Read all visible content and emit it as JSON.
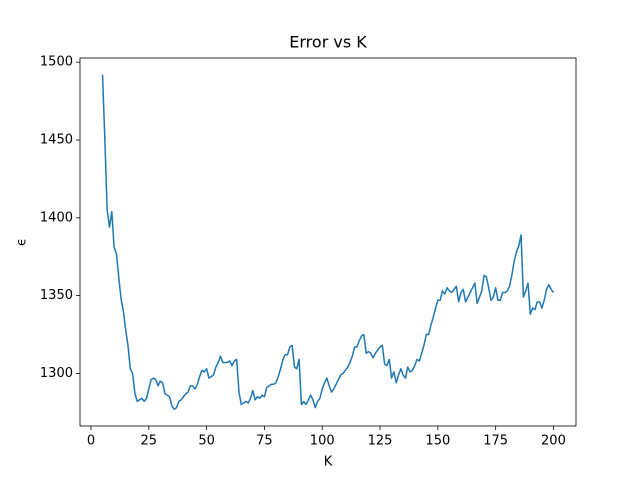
{
  "chart_data": {
    "type": "line",
    "title": "Error vs K",
    "xlabel": "K",
    "ylabel": "ϵ",
    "x": [
      5,
      6,
      7,
      8,
      9,
      10,
      11,
      12,
      13,
      14,
      15,
      16,
      17,
      18,
      19,
      20,
      21,
      22,
      23,
      24,
      25,
      26,
      27,
      28,
      29,
      30,
      31,
      32,
      33,
      34,
      35,
      36,
      37,
      38,
      39,
      40,
      41,
      42,
      43,
      44,
      45,
      46,
      47,
      48,
      49,
      50,
      51,
      52,
      53,
      54,
      55,
      56,
      57,
      58,
      59,
      60,
      61,
      62,
      63,
      64,
      65,
      66,
      67,
      68,
      69,
      70,
      71,
      72,
      73,
      74,
      75,
      76,
      77,
      78,
      79,
      80,
      81,
      82,
      83,
      84,
      85,
      86,
      87,
      88,
      89,
      90,
      91,
      92,
      93,
      94,
      95,
      96,
      97,
      98,
      99,
      100,
      101,
      102,
      103,
      104,
      105,
      106,
      107,
      108,
      109,
      110,
      111,
      112,
      113,
      114,
      115,
      116,
      117,
      118,
      119,
      120,
      121,
      122,
      123,
      124,
      125,
      126,
      127,
      128,
      129,
      130,
      131,
      132,
      133,
      134,
      135,
      136,
      137,
      138,
      139,
      140,
      141,
      142,
      143,
      144,
      145,
      146,
      147,
      148,
      149,
      150,
      151,
      152,
      153,
      154,
      155,
      156,
      157,
      158,
      159,
      160,
      161,
      162,
      163,
      164,
      165,
      166,
      167,
      168,
      169,
      170,
      171,
      172,
      173,
      174,
      175,
      176,
      177,
      178,
      179,
      180,
      181,
      182,
      183,
      184,
      185,
      186,
      187,
      188,
      189,
      190,
      191,
      192,
      193,
      194,
      195,
      196,
      197,
      198,
      199,
      200
    ],
    "series": [
      {
        "name": "error",
        "color": "#1f77b4",
        "values": [
          1492,
          1450,
          1405,
          1394,
          1404,
          1381,
          1377,
          1362,
          1348,
          1340,
          1328,
          1318,
          1303,
          1300,
          1287,
          1282,
          1283,
          1284,
          1282,
          1284,
          1290,
          1296,
          1297,
          1296,
          1292,
          1295,
          1294,
          1287,
          1286,
          1285,
          1279,
          1277,
          1278,
          1282,
          1283,
          1285,
          1287,
          1288,
          1292,
          1292,
          1290,
          1293,
          1298,
          1302,
          1301,
          1303,
          1297,
          1298,
          1299,
          1304,
          1307,
          1311,
          1307,
          1307,
          1307,
          1308,
          1305,
          1308,
          1309,
          1288,
          1280,
          1281,
          1282,
          1281,
          1284,
          1289,
          1283,
          1285,
          1284,
          1286,
          1285,
          1291,
          1292,
          1293,
          1293,
          1294,
          1298,
          1303,
          1309,
          1312,
          1312,
          1317,
          1318,
          1304,
          1303,
          1309,
          1280,
          1282,
          1280,
          1283,
          1286,
          1283,
          1278,
          1282,
          1284,
          1290,
          1294,
          1297,
          1292,
          1288,
          1290,
          1293,
          1296,
          1299,
          1300,
          1302,
          1304,
          1307,
          1311,
          1317,
          1317,
          1321,
          1324,
          1325,
          1313,
          1314,
          1313,
          1310,
          1313,
          1315,
          1317,
          1318,
          1306,
          1305,
          1309,
          1297,
          1301,
          1294,
          1299,
          1303,
          1299,
          1297,
          1304,
          1301,
          1302,
          1305,
          1309,
          1308,
          1313,
          1318,
          1325,
          1325,
          1331,
          1336,
          1342,
          1347,
          1347,
          1353,
          1351,
          1355,
          1353,
          1352,
          1354,
          1356,
          1346,
          1352,
          1354,
          1346,
          1349,
          1352,
          1355,
          1358,
          1345,
          1349,
          1353,
          1363,
          1362,
          1355,
          1347,
          1349,
          1355,
          1347,
          1347,
          1352,
          1352,
          1353,
          1356,
          1363,
          1372,
          1378,
          1382,
          1389,
          1349,
          1353,
          1358,
          1338,
          1342,
          1341,
          1346,
          1346,
          1342,
          1347,
          1354,
          1357,
          1354,
          1352
        ]
      }
    ],
    "xlim": [
      -4.75,
      209.75
    ],
    "ylim": [
      1266.2,
      1502.7
    ],
    "xticks": [
      0,
      25,
      50,
      75,
      100,
      125,
      150,
      175,
      200
    ],
    "yticks": [
      1300,
      1350,
      1400,
      1450,
      1500
    ]
  }
}
